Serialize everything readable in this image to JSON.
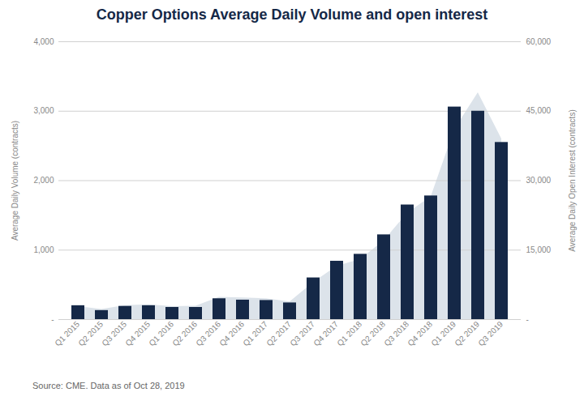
{
  "chart_data": {
    "type": "bar",
    "title": "Copper Options Average Daily Volume and open interest",
    "caption": "Source: CME. Data as of Oct 28, 2019",
    "categories": [
      "Q1 2015",
      "Q2 2015",
      "Q3 2015",
      "Q4 2015",
      "Q1 2016",
      "Q2 2016",
      "Q3 2016",
      "Q4 2016",
      "Q1 2017",
      "Q2 2017",
      "Q3 2017",
      "Q4 2017",
      "Q1 2018",
      "Q2 2018",
      "Q3 2018",
      "Q4 2018",
      "Q1 2019",
      "Q2 2019",
      "Q3 2019"
    ],
    "series": [
      {
        "type": "bar",
        "color": "#152847",
        "values": [
          200,
          130,
          190,
          200,
          175,
          175,
          300,
          280,
          275,
          240,
          600,
          840,
          940,
          1220,
          1650,
          1780,
          3060,
          3000,
          2550
        ]
      },
      {
        "type": "area",
        "color": "#dce3ea",
        "axis": "y2",
        "values": [
          2800,
          2200,
          3000,
          3200,
          2800,
          2900,
          4800,
          4700,
          4500,
          3800,
          8000,
          11500,
          13000,
          17000,
          23000,
          26500,
          41000,
          49000,
          39000
        ]
      }
    ],
    "ylabel": "Average Daily Volume (contracts)",
    "y2label": "Average Daily Open Interest (contracts)",
    "ylim": [
      0,
      4000
    ],
    "yticks": [
      {
        "value": 0,
        "label": "-"
      },
      {
        "value": 1000,
        "label": "1,000"
      },
      {
        "value": 2000,
        "label": "2,000"
      },
      {
        "value": 3000,
        "label": "3,000"
      },
      {
        "value": 4000,
        "label": "4,000"
      }
    ],
    "y2lim": [
      0,
      60000
    ],
    "y2ticks": [
      {
        "value": 0,
        "label": "-"
      },
      {
        "value": 15000,
        "label": "15,000"
      },
      {
        "value": 30000,
        "label": "30,000"
      },
      {
        "value": 45000,
        "label": "45,000"
      },
      {
        "value": 60000,
        "label": "60,000"
      }
    ],
    "grid": true
  }
}
